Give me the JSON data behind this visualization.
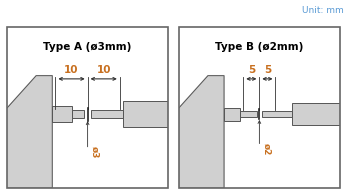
{
  "fig_width": 3.47,
  "fig_height": 1.96,
  "dpi": 100,
  "bg_color": "#ffffff",
  "unit_text": "Unit: mm",
  "unit_color": "#5b9bd5",
  "panel_a_title": "Type A (ø3mm)",
  "panel_b_title": "Type B (ø2mm)",
  "title_color": "#000000",
  "dim_color": "#c87020",
  "dim_line_color": "#333333",
  "body_color": "#d0d0d0",
  "body_edge_color": "#555555",
  "panel_a_dim1": "10",
  "panel_a_dim2": "10",
  "panel_b_dim1": "5",
  "panel_b_dim2": "5",
  "panel_a_diam": "ø3",
  "panel_b_diam": "ø2"
}
